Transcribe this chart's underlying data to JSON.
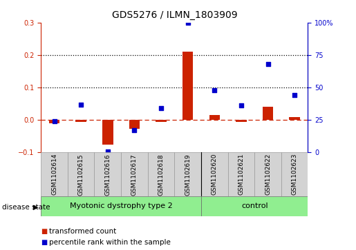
{
  "title": "GDS5276 / ILMN_1803909",
  "samples": [
    "GSM1102614",
    "GSM1102615",
    "GSM1102616",
    "GSM1102617",
    "GSM1102618",
    "GSM1102619",
    "GSM1102620",
    "GSM1102621",
    "GSM1102622",
    "GSM1102623"
  ],
  "red_values": [
    -0.01,
    -0.005,
    -0.075,
    -0.028,
    -0.005,
    0.21,
    0.015,
    -0.005,
    0.04,
    0.01
  ],
  "blue_pct": [
    24,
    37,
    1,
    17,
    34,
    100,
    48,
    36,
    68,
    44
  ],
  "groups": [
    {
      "label": "Myotonic dystrophy type 2",
      "start": 0,
      "end": 5,
      "color": "#90EE90"
    },
    {
      "label": "control",
      "start": 6,
      "end": 9,
      "color": "#90EE90"
    }
  ],
  "group_boundary": 5.5,
  "ylim_left": [
    -0.1,
    0.3
  ],
  "ylim_right": [
    0,
    100
  ],
  "yticks_left": [
    -0.1,
    0.0,
    0.1,
    0.2,
    0.3
  ],
  "yticks_right": [
    0,
    25,
    50,
    75,
    100
  ],
  "ytick_labels_right": [
    "0",
    "25",
    "50",
    "75",
    "100%"
  ],
  "hlines": [
    0.1,
    0.2
  ],
  "red_color": "#CC2200",
  "blue_color": "#0000CC",
  "bar_width": 0.4,
  "legend_items": [
    {
      "label": "transformed count",
      "color": "#CC2200"
    },
    {
      "label": "percentile rank within the sample",
      "color": "#0000CC"
    }
  ],
  "disease_state_label": "disease state",
  "title_fontsize": 10,
  "tick_fontsize": 7,
  "sample_fontsize": 6.5,
  "group_fontsize": 8,
  "legend_fontsize": 7.5
}
